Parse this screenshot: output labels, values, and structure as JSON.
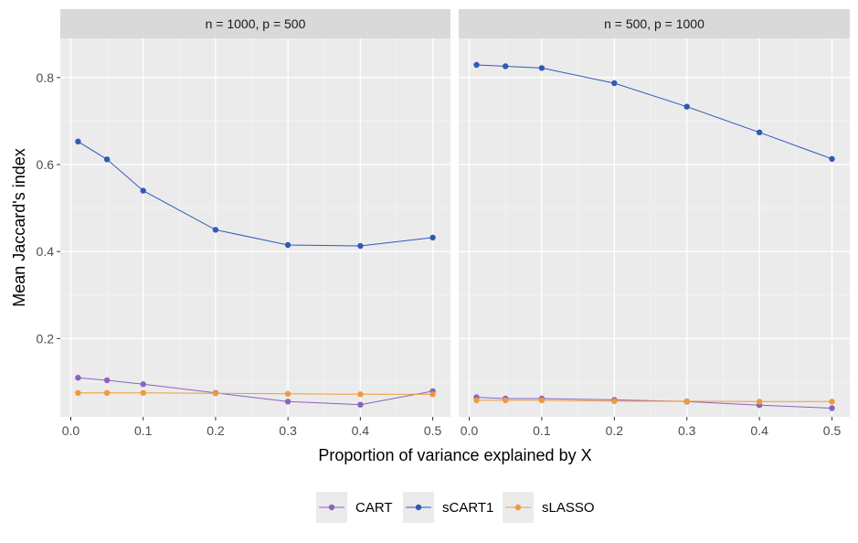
{
  "chart_data": {
    "type": "line",
    "xlabel": "Proportion of variance explained by X",
    "ylabel": "Mean Jaccard's index",
    "x": [
      0.01,
      0.05,
      0.1,
      0.2,
      0.3,
      0.4,
      0.5
    ],
    "xticks": [
      "0.0",
      "0.1",
      "0.2",
      "0.3",
      "0.4",
      "0.5"
    ],
    "xtick_values": [
      0.0,
      0.1,
      0.2,
      0.3,
      0.4,
      0.5
    ],
    "xlim": [
      -0.0145,
      0.5245
    ],
    "yticks": [
      "0.2",
      "0.4",
      "0.6",
      "0.8"
    ],
    "ytick_values": [
      0.2,
      0.4,
      0.6,
      0.8
    ],
    "ylim": [
      0.02,
      0.89
    ],
    "grid": true,
    "legend_position": "bottom",
    "legend": [
      "CART",
      "sCART1",
      "sLASSO"
    ],
    "colors": {
      "CART": "#8B62C1",
      "sCART1": "#2E5AB8",
      "sLASSO": "#F0993C"
    },
    "panels": [
      {
        "title": "n = 1000, p = 500",
        "series": [
          {
            "name": "CART",
            "values": [
              0.11,
              0.104,
              0.095,
              0.075,
              0.055,
              0.048,
              0.079
            ]
          },
          {
            "name": "sCART1",
            "values": [
              0.653,
              0.612,
              0.54,
              0.45,
              0.415,
              0.413,
              0.432
            ]
          },
          {
            "name": "sLASSO",
            "values": [
              0.075,
              0.075,
              0.075,
              0.074,
              0.073,
              0.072,
              0.072
            ]
          }
        ]
      },
      {
        "title": "n = 500, p = 1000",
        "series": [
          {
            "name": "CART",
            "values": [
              0.065,
              0.062,
              0.062,
              0.059,
              0.055,
              0.047,
              0.04
            ]
          },
          {
            "name": "sCART1",
            "values": [
              0.829,
              0.826,
              0.822,
              0.787,
              0.733,
              0.674,
              0.613
            ]
          },
          {
            "name": "sLASSO",
            "values": [
              0.058,
              0.058,
              0.058,
              0.056,
              0.056,
              0.055,
              0.055
            ]
          }
        ]
      }
    ]
  }
}
